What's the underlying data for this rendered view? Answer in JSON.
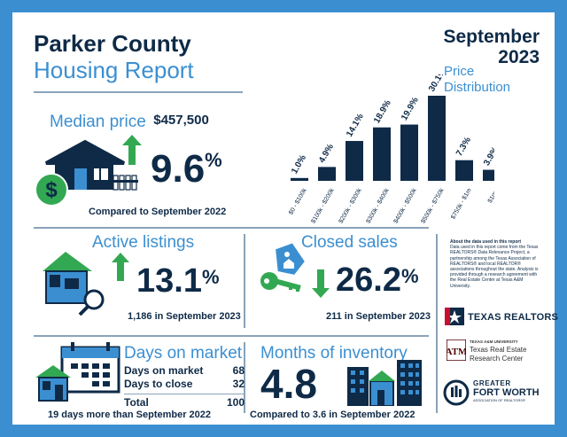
{
  "header": {
    "title_line1": "Parker County",
    "title_line2": "Housing Report",
    "month": "September",
    "year": "2023",
    "price_dist_line1": "Price",
    "price_dist_line2": "Distribution"
  },
  "median": {
    "label": "Median price",
    "value": "$457,500",
    "change": "9.6",
    "unit": "%",
    "caption": "Compared to September 2022"
  },
  "chart_data": {
    "type": "bar",
    "title": "Price Distribution",
    "categories": [
      "$0 - $100k",
      "$100k - $200k",
      "$200k - $300k",
      "$300k - $400k",
      "$400k - $500k",
      "$500k - $750k",
      "$750k - $1m",
      "$1m+"
    ],
    "values": [
      1.0,
      4.9,
      14.1,
      18.9,
      19.9,
      30.1,
      7.3,
      3.9
    ],
    "labels": [
      "1.0%",
      "4.9%",
      "14.1%",
      "18.9%",
      "19.9%",
      "30.1%",
      "7.3%",
      "3.9%"
    ],
    "ylim": [
      0,
      30.1
    ],
    "grid": false,
    "color": "#0e2a47"
  },
  "active": {
    "label": "Active listings",
    "change": "13.1",
    "unit": "%",
    "caption": "1,186 in September 2023"
  },
  "closed": {
    "label": "Closed sales",
    "change": "26.2",
    "unit": "%",
    "caption": "211 in September 2023"
  },
  "about": {
    "heading": "About the data used in this report",
    "body": "Data used in this report come from the Texas REALTORS® Data Relevance Project, a partnership among the Texas Association of REALTORS® and local REALTOR® associations throughout the state. Analysis is provided through a research agreement with the Real Estate Center at Texas A&M University."
  },
  "dom": {
    "label": "Days on market",
    "rows": [
      {
        "name": "Days on market",
        "value": "68"
      },
      {
        "name": "Days to close",
        "value": "32"
      }
    ],
    "total_label": "Total",
    "total_value": "100",
    "caption": "19 days more than September 2022"
  },
  "inventory": {
    "label": "Months of inventory",
    "value": "4.8",
    "caption": "Compared to 3.6 in September 2022"
  },
  "logos": {
    "texas_realtors": "TEXAS REALTORS",
    "tamu_small": "TEXAS A&M UNIVERSITY",
    "tamu_line1": "Texas Real Estate",
    "tamu_line2": "Research Center",
    "gfw_line1": "GREATER",
    "gfw_line2": "FORT WORTH",
    "gfw_line3": "ASSOCIATION OF REALTORS®"
  },
  "colors": {
    "navy": "#0e2a47",
    "blue": "#3b8fd1",
    "green": "#33a852"
  }
}
